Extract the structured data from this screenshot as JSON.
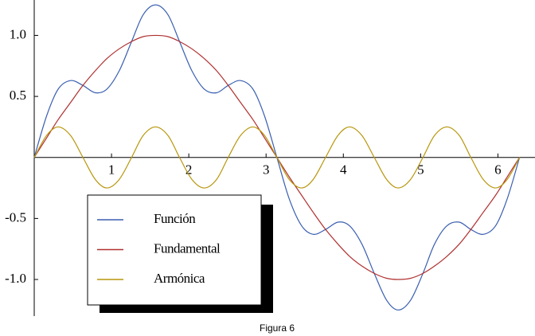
{
  "chart_data": {
    "type": "line",
    "title": "Figura 6",
    "x": [
      0,
      0.16,
      0.31,
      0.47,
      0.63,
      0.79,
      0.94,
      1.1,
      1.26,
      1.41,
      1.57,
      1.73,
      1.88,
      2.04,
      2.2,
      2.36,
      2.51,
      2.67,
      2.83,
      2.98,
      3.14,
      3.3,
      3.46,
      3.61,
      3.77,
      3.93,
      4.08,
      4.24,
      4.4,
      4.56,
      4.71,
      4.87,
      5.03,
      5.18,
      5.34,
      5.5,
      5.65,
      5.81,
      5.97,
      6.12,
      6.28
    ],
    "series": [
      {
        "name": "Función",
        "color": "#3a5fb0",
        "values": [
          0,
          0.34,
          0.56,
          0.63,
          0.59,
          0.53,
          0.56,
          0.71,
          0.95,
          1.17,
          1.25,
          1.17,
          0.95,
          0.71,
          0.56,
          0.53,
          0.59,
          0.63,
          0.56,
          0.34,
          0,
          -0.34,
          -0.56,
          -0.63,
          -0.59,
          -0.53,
          -0.56,
          -0.71,
          -0.95,
          -1.17,
          -1.25,
          -1.17,
          -0.95,
          -0.71,
          -0.56,
          -0.53,
          -0.59,
          -0.63,
          -0.56,
          -0.34,
          0
        ]
      },
      {
        "name": "Fundamental",
        "color": "#b03030",
        "values": [
          0,
          0.16,
          0.31,
          0.45,
          0.59,
          0.71,
          0.81,
          0.89,
          0.95,
          0.99,
          1,
          0.99,
          0.95,
          0.89,
          0.81,
          0.71,
          0.59,
          0.45,
          0.31,
          0.16,
          0,
          -0.16,
          -0.31,
          -0.45,
          -0.59,
          -0.71,
          -0.81,
          -0.89,
          -0.95,
          -0.99,
          -1,
          -0.99,
          -0.95,
          -0.89,
          -0.81,
          -0.71,
          -0.59,
          -0.45,
          -0.31,
          -0.16,
          0
        ]
      },
      {
        "name": "Armónica",
        "color": "#b8960c",
        "values": [
          0,
          0.18,
          0.25,
          0.18,
          0,
          -0.18,
          -0.25,
          -0.18,
          0,
          0.18,
          0.25,
          0.18,
          0,
          -0.18,
          -0.25,
          -0.18,
          0,
          0.18,
          0.25,
          0.18,
          0,
          -0.18,
          -0.25,
          -0.18,
          0,
          0.18,
          0.25,
          0.18,
          0,
          -0.18,
          -0.25,
          -0.18,
          0,
          0.18,
          0.25,
          0.18,
          0,
          -0.18,
          -0.25,
          -0.18,
          0
        ]
      }
    ],
    "xlim": [
      0,
      6.48
    ],
    "ylim": [
      -1.3,
      1.29
    ],
    "xticks": [
      1,
      2,
      3,
      4,
      5,
      6
    ],
    "yticks": [
      {
        "value": -1,
        "label": "-1.0"
      },
      -0.5,
      0.5,
      {
        "value": 1,
        "label": "1.0"
      }
    ]
  }
}
